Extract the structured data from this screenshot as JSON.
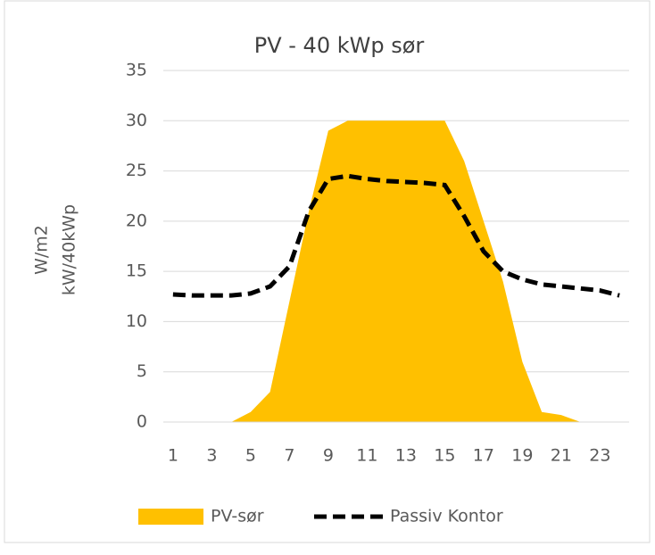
{
  "chart_data": {
    "type": "area-line",
    "title": "PV -  40 kWp sør",
    "y_label_lines": [
      "W/m2",
      "kW/40kWp"
    ],
    "categories": [
      1,
      null,
      3,
      null,
      5,
      null,
      7,
      null,
      9,
      null,
      11,
      null,
      13,
      null,
      15,
      null,
      17,
      null,
      19,
      null,
      21,
      null,
      23,
      null
    ],
    "series": [
      {
        "name": "PV-sør",
        "type": "area",
        "color": "#ffc000",
        "values": [
          0,
          0,
          0,
          0,
          1,
          3,
          12,
          21,
          29,
          30,
          30,
          30,
          30,
          30,
          30,
          26,
          20,
          14,
          6,
          1,
          0.7,
          0,
          0,
          0
        ]
      },
      {
        "name": "Passiv Kontor",
        "type": "line",
        "color": "#000000",
        "dashed": true,
        "values": [
          12.7,
          12.6,
          12.6,
          12.6,
          12.8,
          13.5,
          15.5,
          21,
          24.2,
          24.5,
          24.2,
          24,
          23.9,
          23.8,
          23.6,
          20.5,
          17,
          15,
          14.2,
          13.7,
          13.5,
          13.3,
          13.1,
          12.6
        ]
      }
    ],
    "ylim": [
      0,
      35
    ],
    "yticks": [
      0,
      5,
      10,
      15,
      20,
      25,
      30,
      35
    ],
    "grid": true,
    "legend": "bottom"
  }
}
